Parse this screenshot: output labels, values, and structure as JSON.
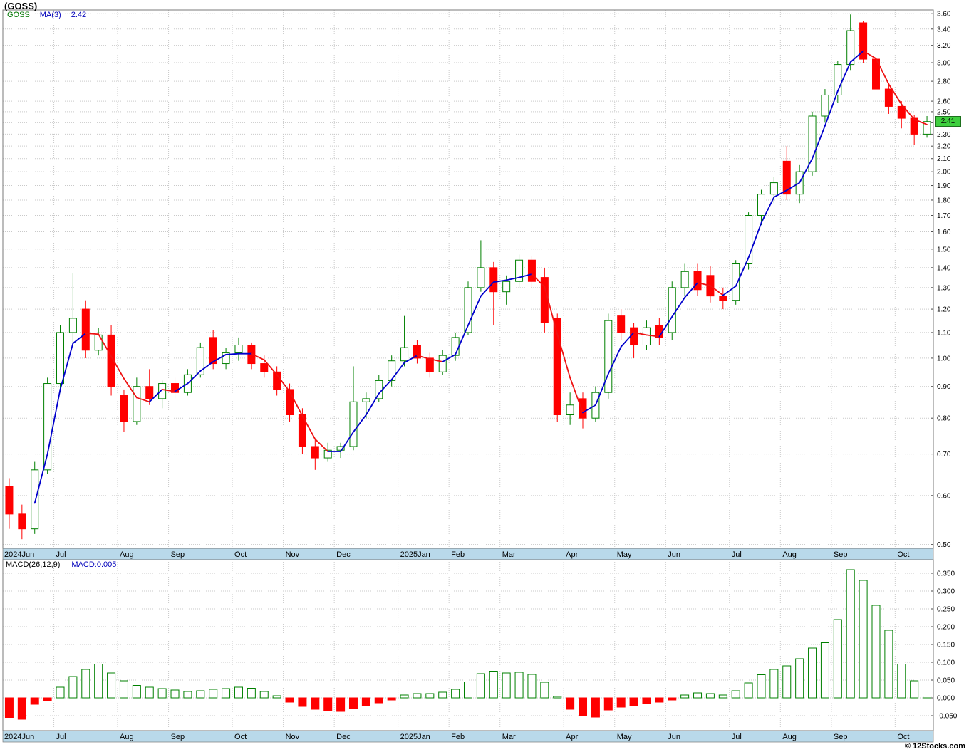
{
  "header": {
    "title": "(GOSS)",
    "legend": {
      "symbol": "GOSS",
      "ma_label": "MA(3)",
      "ma_value": "2.42"
    }
  },
  "macd_header": {
    "label": "MACD(26,12,9)",
    "value_label": "MACD:0.005"
  },
  "price_badge": "2.41",
  "footer": {
    "copyright": "© 12Stocks.com"
  },
  "colors": {
    "up": "#008000",
    "down": "#ff0000",
    "ma_up": "#0000cc",
    "ma_down": "#ee1111",
    "grid": "#c9c9c9",
    "axis_strip": "#b9d9ea",
    "badge_bg": "#3ecf3e",
    "badge_border": "#1d6f1d",
    "frame": "#7a7a7a",
    "text": "#000000",
    "legend_symbol": "#007700",
    "legend_blue": "#0000bb"
  },
  "chart_data": {
    "type": "candlestick",
    "title": "(GOSS)",
    "symbol": "GOSS",
    "interval": "weekly",
    "last_close": 2.41,
    "overlay": {
      "name": "MA(3)",
      "period": 3,
      "last_value": 2.42
    },
    "price_panel": {
      "scale": "log",
      "ymin": 0.493,
      "ymax": 3.65,
      "ma_period": 3,
      "yticks": [
        3.6,
        3.4,
        3.2,
        3.0,
        2.8,
        2.6,
        2.5,
        2.4,
        2.3,
        2.2,
        2.1,
        2.0,
        1.9,
        1.8,
        1.7,
        1.6,
        1.5,
        1.4,
        1.3,
        1.2,
        1.1,
        1.0,
        0.9,
        0.8,
        0.7,
        0.6,
        0.5
      ]
    },
    "macd_panel": {
      "name": "MACD(26,12,9)",
      "last_value": 0.005,
      "ylim": [
        -0.092,
        0.388
      ],
      "yticks": [
        0.35,
        0.3,
        0.25,
        0.2,
        0.15,
        0.1,
        0.05,
        0.0,
        -0.05
      ]
    },
    "months": [
      {
        "label": "2024Jun",
        "week": 0
      },
      {
        "label": "Jul",
        "week": 4
      },
      {
        "label": "Aug",
        "week": 9
      },
      {
        "label": "Sep",
        "week": 13
      },
      {
        "label": "Oct",
        "week": 18
      },
      {
        "label": "Nov",
        "week": 22
      },
      {
        "label": "Dec",
        "week": 26
      },
      {
        "label": "2025Jan",
        "week": 31
      },
      {
        "label": "Feb",
        "week": 35
      },
      {
        "label": "Mar",
        "week": 39
      },
      {
        "label": "Apr",
        "week": 44
      },
      {
        "label": "May",
        "week": 48
      },
      {
        "label": "Jun",
        "week": 52
      },
      {
        "label": "Jul",
        "week": 57
      },
      {
        "label": "Aug",
        "week": 61
      },
      {
        "label": "Sep",
        "week": 65
      },
      {
        "label": "Oct",
        "week": 70
      }
    ],
    "candles": [
      [
        0.62,
        0.64,
        0.53,
        0.56
      ],
      [
        0.56,
        0.58,
        0.51,
        0.53
      ],
      [
        0.53,
        0.68,
        0.52,
        0.66
      ],
      [
        0.66,
        0.93,
        0.65,
        0.91
      ],
      [
        0.91,
        1.13,
        0.88,
        1.1
      ],
      [
        1.1,
        1.37,
        1.05,
        1.16
      ],
      [
        1.2,
        1.24,
        1.0,
        1.03
      ],
      [
        1.03,
        1.12,
        1.01,
        1.09
      ],
      [
        1.09,
        1.13,
        0.87,
        0.9
      ],
      [
        0.87,
        0.89,
        0.76,
        0.79
      ],
      [
        0.79,
        0.93,
        0.78,
        0.9
      ],
      [
        0.9,
        0.96,
        0.84,
        0.86
      ],
      [
        0.86,
        0.92,
        0.83,
        0.91
      ],
      [
        0.91,
        0.93,
        0.86,
        0.88
      ],
      [
        0.88,
        0.96,
        0.87,
        0.94
      ],
      [
        0.94,
        1.06,
        0.93,
        1.04
      ],
      [
        1.08,
        1.11,
        0.96,
        0.98
      ],
      [
        0.98,
        1.04,
        0.96,
        1.02
      ],
      [
        1.02,
        1.08,
        0.99,
        1.05
      ],
      [
        1.05,
        1.06,
        0.96,
        0.98
      ],
      [
        0.98,
        1.01,
        0.93,
        0.95
      ],
      [
        0.95,
        0.97,
        0.87,
        0.89
      ],
      [
        0.89,
        0.91,
        0.79,
        0.81
      ],
      [
        0.81,
        0.83,
        0.7,
        0.72
      ],
      [
        0.72,
        0.74,
        0.66,
        0.69
      ],
      [
        0.69,
        0.73,
        0.68,
        0.71
      ],
      [
        0.71,
        0.73,
        0.69,
        0.72
      ],
      [
        0.72,
        0.97,
        0.71,
        0.85
      ],
      [
        0.85,
        0.88,
        0.8,
        0.86
      ],
      [
        0.86,
        0.94,
        0.85,
        0.92
      ],
      [
        0.92,
        1.01,
        0.9,
        0.99
      ],
      [
        0.99,
        1.17,
        0.97,
        1.04
      ],
      [
        1.05,
        1.07,
        0.98,
        1.0
      ],
      [
        1.0,
        1.02,
        0.93,
        0.95
      ],
      [
        0.95,
        1.03,
        0.94,
        1.01
      ],
      [
        1.01,
        1.1,
        0.99,
        1.08
      ],
      [
        1.1,
        1.33,
        1.09,
        1.3
      ],
      [
        1.3,
        1.55,
        1.28,
        1.4
      ],
      [
        1.4,
        1.43,
        1.13,
        1.28
      ],
      [
        1.28,
        1.36,
        1.22,
        1.33
      ],
      [
        1.33,
        1.47,
        1.3,
        1.44
      ],
      [
        1.44,
        1.46,
        1.3,
        1.33
      ],
      [
        1.35,
        1.4,
        1.1,
        1.14
      ],
      [
        1.16,
        1.18,
        0.79,
        0.81
      ],
      [
        0.81,
        0.88,
        0.78,
        0.84
      ],
      [
        0.86,
        0.88,
        0.77,
        0.8
      ],
      [
        0.8,
        0.9,
        0.79,
        0.88
      ],
      [
        0.88,
        1.18,
        0.86,
        1.15
      ],
      [
        1.17,
        1.2,
        1.07,
        1.1
      ],
      [
        1.12,
        1.14,
        1.0,
        1.05
      ],
      [
        1.05,
        1.15,
        1.03,
        1.12
      ],
      [
        1.13,
        1.16,
        1.05,
        1.08
      ],
      [
        1.1,
        1.33,
        1.07,
        1.3
      ],
      [
        1.3,
        1.42,
        1.26,
        1.38
      ],
      [
        1.38,
        1.42,
        1.26,
        1.29
      ],
      [
        1.36,
        1.41,
        1.23,
        1.26
      ],
      [
        1.26,
        1.3,
        1.2,
        1.24
      ],
      [
        1.24,
        1.44,
        1.22,
        1.42
      ],
      [
        1.42,
        1.72,
        1.39,
        1.7
      ],
      [
        1.7,
        1.87,
        1.64,
        1.84
      ],
      [
        1.84,
        1.96,
        1.78,
        1.92
      ],
      [
        2.08,
        2.2,
        1.8,
        1.84
      ],
      [
        1.84,
        2.05,
        1.78,
        2.0
      ],
      [
        2.0,
        2.5,
        1.97,
        2.46
      ],
      [
        2.46,
        2.72,
        2.4,
        2.66
      ],
      [
        2.66,
        3.02,
        2.58,
        2.98
      ],
      [
        2.98,
        3.59,
        2.92,
        3.38
      ],
      [
        3.48,
        3.5,
        3.0,
        3.04
      ],
      [
        3.04,
        3.1,
        2.62,
        2.72
      ],
      [
        2.72,
        2.78,
        2.48,
        2.55
      ],
      [
        2.55,
        2.6,
        2.35,
        2.44
      ],
      [
        2.44,
        2.47,
        2.21,
        2.3
      ],
      [
        2.3,
        2.46,
        2.27,
        2.41
      ]
    ],
    "macd": [
      -0.055,
      -0.06,
      -0.018,
      -0.008,
      0.03,
      0.06,
      0.08,
      0.095,
      0.07,
      0.048,
      0.035,
      0.03,
      0.026,
      0.022,
      0.018,
      0.02,
      0.024,
      0.026,
      0.03,
      0.027,
      0.018,
      0.006,
      -0.012,
      -0.024,
      -0.032,
      -0.036,
      -0.038,
      -0.03,
      -0.022,
      -0.014,
      -0.006,
      0.008,
      0.012,
      0.012,
      0.016,
      0.024,
      0.045,
      0.068,
      0.075,
      0.07,
      0.072,
      0.066,
      0.044,
      0.004,
      -0.032,
      -0.05,
      -0.054,
      -0.034,
      -0.026,
      -0.022,
      -0.016,
      -0.012,
      -0.006,
      0.008,
      0.014,
      0.012,
      0.008,
      0.02,
      0.042,
      0.065,
      0.08,
      0.09,
      0.11,
      0.14,
      0.155,
      0.22,
      0.36,
      0.33,
      0.26,
      0.19,
      0.095,
      0.048,
      0.005
    ]
  }
}
